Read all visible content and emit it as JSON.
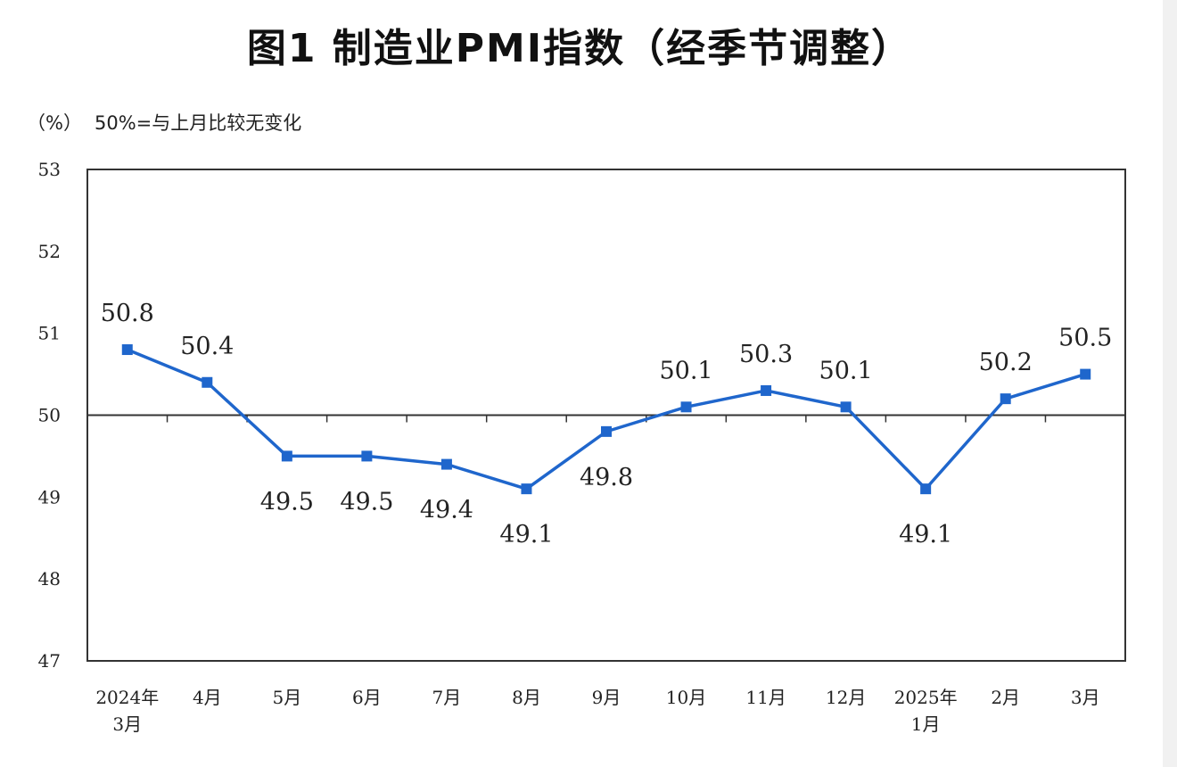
{
  "title": "图1  制造业PMI指数（经季节调整）",
  "unit": "（%）",
  "note": "50%=与上月比较无变化",
  "colors": {
    "line": "#1f66cc",
    "axis": "#333333",
    "baseline": "#333333"
  },
  "chart_data": {
    "type": "line",
    "categories": [
      [
        "2024年",
        "3月"
      ],
      [
        "4月"
      ],
      [
        "5月"
      ],
      [
        "6月"
      ],
      [
        "7月"
      ],
      [
        "8月"
      ],
      [
        "9月"
      ],
      [
        "10月"
      ],
      [
        "11月"
      ],
      [
        "12月"
      ],
      [
        "2025年",
        "1月"
      ],
      [
        "2月"
      ],
      [
        "3月"
      ]
    ],
    "values": [
      50.8,
      50.4,
      49.5,
      49.5,
      49.4,
      49.1,
      49.8,
      50.1,
      50.3,
      50.1,
      49.1,
      50.2,
      50.5
    ],
    "labels": [
      "50.8",
      "50.4",
      "49.5",
      "49.5",
      "49.4",
      "49.1",
      "49.8",
      "50.1",
      "50.3",
      "50.1",
      "49.1",
      "50.2",
      "50.5"
    ],
    "ylim": [
      47,
      53
    ],
    "yticks": [
      "47",
      "48",
      "49",
      "50",
      "51",
      "52",
      "53"
    ],
    "reference_line": 50,
    "label_side": [
      "above",
      "above",
      "below",
      "below",
      "below",
      "below",
      "below",
      "above",
      "above",
      "above",
      "below",
      "above",
      "above"
    ],
    "grid": false,
    "legend": "none"
  }
}
